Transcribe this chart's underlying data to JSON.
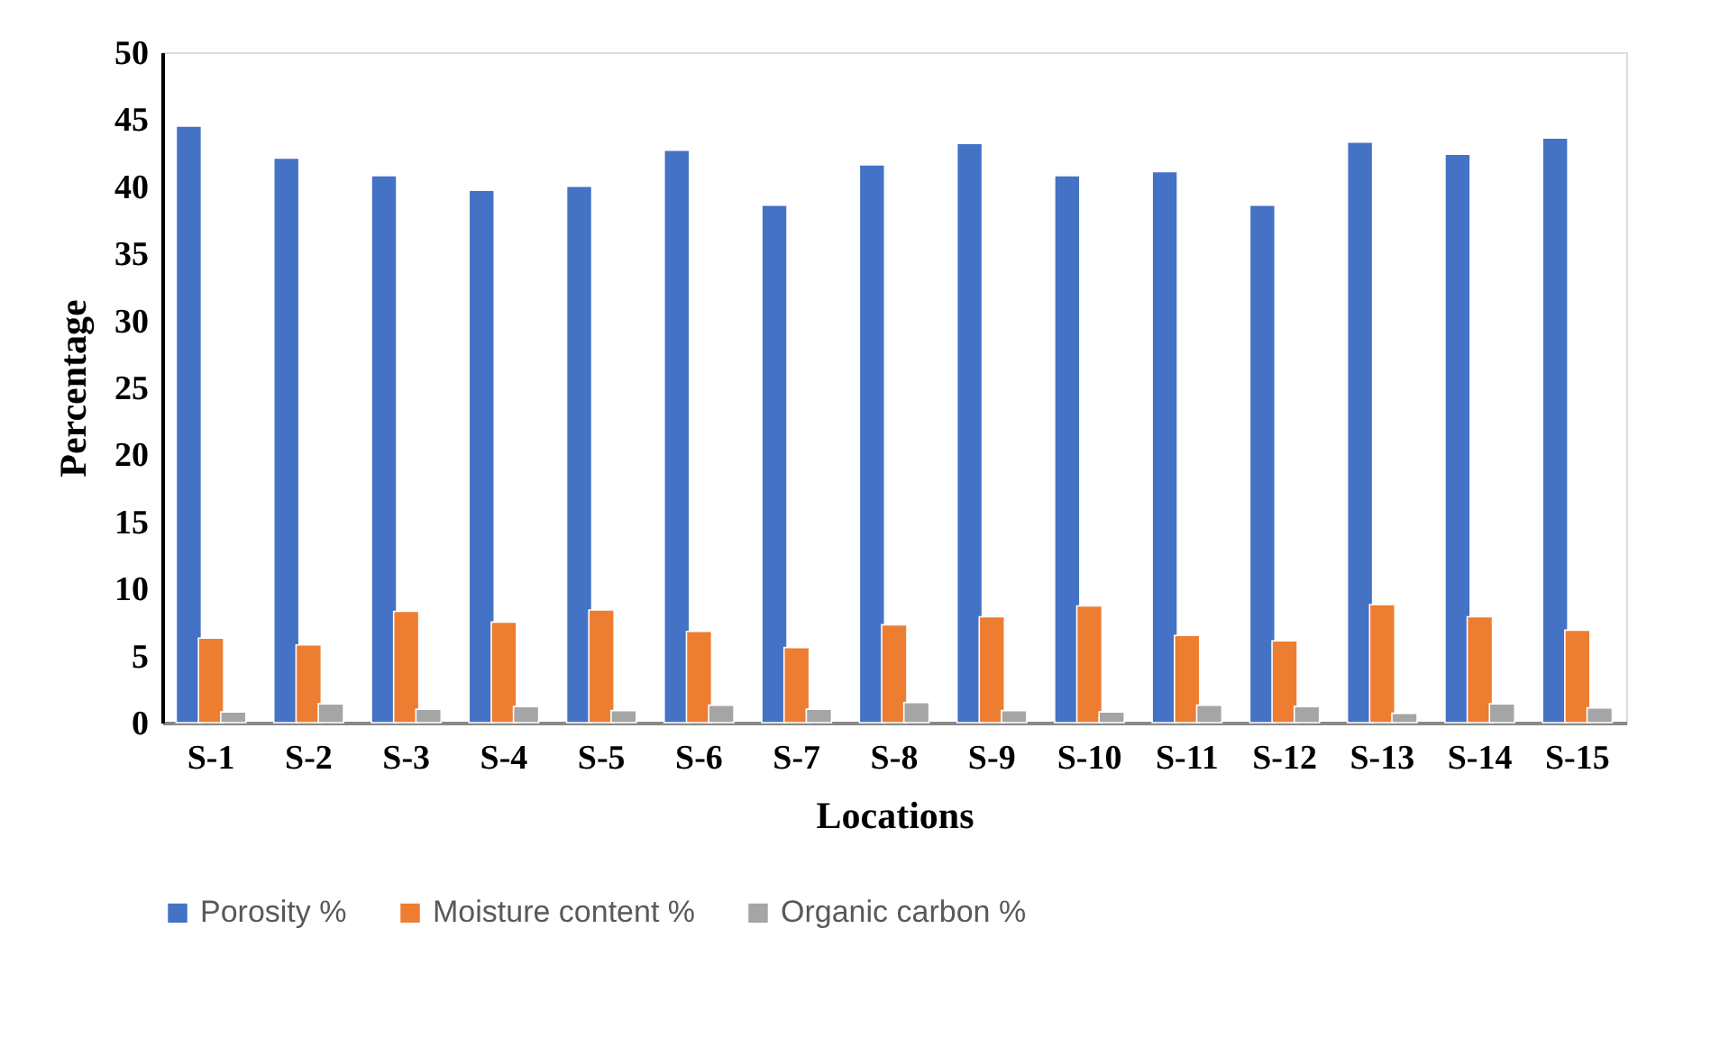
{
  "chart_data": {
    "type": "bar",
    "xlabel": "Locations",
    "ylabel": "Percentage",
    "categories": [
      "S-1",
      "S-2",
      "S-3",
      "S-4",
      "S-5",
      "S-6",
      "S-7",
      "S-8",
      "S-9",
      "S-10",
      "S-11",
      "S-12",
      "S-13",
      "S-14",
      "S-15"
    ],
    "series": [
      {
        "name": "Porosity %",
        "color": "#4472c4",
        "values": [
          44.5,
          42.1,
          40.8,
          39.7,
          40.0,
          42.7,
          38.6,
          41.6,
          43.2,
          40.8,
          41.1,
          38.6,
          43.3,
          42.4,
          43.6
        ]
      },
      {
        "name": "Moisture content %",
        "color": "#ed7d31",
        "values": [
          6.3,
          5.8,
          8.3,
          7.5,
          8.4,
          6.8,
          5.6,
          7.3,
          7.9,
          8.7,
          6.5,
          6.1,
          8.8,
          7.9,
          6.9
        ]
      },
      {
        "name": "Organic carbon %",
        "color": "#a5a5a5",
        "values": [
          0.8,
          1.4,
          1.0,
          1.2,
          0.9,
          1.3,
          1.0,
          1.5,
          0.9,
          0.8,
          1.3,
          1.2,
          0.7,
          1.4,
          1.1
        ]
      }
    ],
    "ylim": [
      0,
      50
    ],
    "yticks": [
      0,
      5,
      10,
      15,
      20,
      25,
      30,
      35,
      40,
      45,
      50
    ],
    "grid": false,
    "legend": "bottom"
  }
}
